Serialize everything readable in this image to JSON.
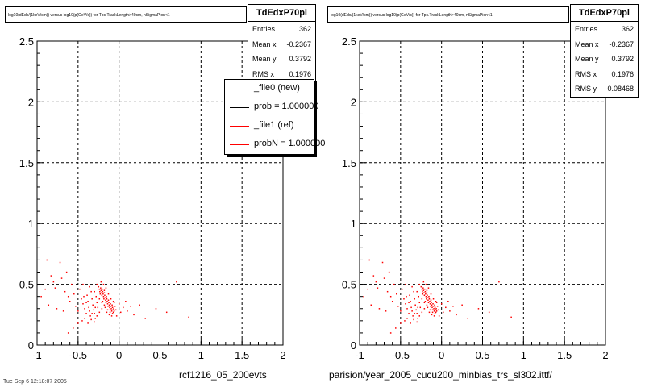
{
  "chart_data": [
    {
      "type": "scatter",
      "title": "log10(dEdx/(1keV/cm)) versus log10(p(GeV/c)) for Tpc.TrackLength>40cm, nSigmaPion<1",
      "xlabel": "rcf1216_05_200evts",
      "ylabel": "",
      "xlim": [
        -1,
        2
      ],
      "ylim": [
        0,
        2.5
      ],
      "xticks": [
        "-1",
        "-0.5",
        "0",
        "0.5",
        "1",
        "1.5",
        "2"
      ],
      "yticks": [
        "0",
        "0.5",
        "1",
        "1.5",
        "2",
        "2.5"
      ],
      "grid": true,
      "marker_color": "#ff0000",
      "stats": {
        "name": "TdEdxP70pi",
        "rows": [
          {
            "label": "Entries",
            "value": "362"
          },
          {
            "label": "Mean x",
            "value": "-0.2367"
          },
          {
            "label": "Mean y",
            "value": "0.3792"
          },
          {
            "label": "RMS x",
            "value": "0.1976"
          }
        ]
      },
      "legend": {
        "placement": "top-right",
        "entries": [
          {
            "label": "_file0 (new)",
            "color": "#000000"
          },
          {
            "label": "prob = 1.000000",
            "color": "#000000"
          },
          {
            "label": "_file1 (ref)",
            "color": "#ff0000"
          },
          {
            "label": "probN = 1.000000",
            "color": "#ff0000"
          }
        ]
      },
      "points": [
        [
          -0.88,
          0.7
        ],
        [
          -0.83,
          0.57
        ],
        [
          -0.8,
          0.52
        ],
        [
          -0.78,
          0.47
        ],
        [
          -0.72,
          0.68
        ],
        [
          -0.7,
          0.55
        ],
        [
          -0.66,
          0.44
        ],
        [
          -0.62,
          0.4
        ],
        [
          -0.6,
          0.36
        ],
        [
          -0.55,
          0.42
        ],
        [
          -0.53,
          0.32
        ],
        [
          -0.5,
          0.28
        ],
        [
          -0.48,
          0.46
        ],
        [
          -0.46,
          0.38
        ],
        [
          -0.44,
          0.34
        ],
        [
          -0.42,
          0.3
        ],
        [
          -0.4,
          0.26
        ],
        [
          -0.39,
          0.41
        ],
        [
          -0.38,
          0.36
        ],
        [
          -0.37,
          0.31
        ],
        [
          -0.36,
          0.28
        ],
        [
          -0.35,
          0.24
        ],
        [
          -0.34,
          0.44
        ],
        [
          -0.33,
          0.38
        ],
        [
          -0.32,
          0.33
        ],
        [
          -0.31,
          0.29
        ],
        [
          -0.3,
          0.26
        ],
        [
          -0.29,
          0.22
        ],
        [
          -0.28,
          0.4
        ],
        [
          -0.27,
          0.35
        ],
        [
          -0.26,
          0.31
        ],
        [
          -0.25,
          0.48
        ],
        [
          -0.24,
          0.46
        ],
        [
          -0.235,
          0.44
        ],
        [
          -0.23,
          0.42
        ],
        [
          -0.225,
          0.47
        ],
        [
          -0.22,
          0.45
        ],
        [
          -0.215,
          0.43
        ],
        [
          -0.21,
          0.41
        ],
        [
          -0.205,
          0.46
        ],
        [
          -0.2,
          0.44
        ],
        [
          -0.195,
          0.42
        ],
        [
          -0.19,
          0.4
        ],
        [
          -0.185,
          0.38
        ],
        [
          -0.18,
          0.43
        ],
        [
          -0.175,
          0.41
        ],
        [
          -0.17,
          0.39
        ],
        [
          -0.165,
          0.37
        ],
        [
          -0.16,
          0.35
        ],
        [
          -0.155,
          0.4
        ],
        [
          -0.15,
          0.38
        ],
        [
          -0.145,
          0.36
        ],
        [
          -0.14,
          0.34
        ],
        [
          -0.135,
          0.32
        ],
        [
          -0.13,
          0.37
        ],
        [
          -0.125,
          0.35
        ],
        [
          -0.12,
          0.33
        ],
        [
          -0.115,
          0.31
        ],
        [
          -0.11,
          0.29
        ],
        [
          -0.105,
          0.34
        ],
        [
          -0.1,
          0.32
        ],
        [
          -0.095,
          0.3
        ],
        [
          -0.09,
          0.28
        ],
        [
          -0.085,
          0.33
        ],
        [
          -0.08,
          0.31
        ],
        [
          -0.075,
          0.29
        ],
        [
          -0.07,
          0.27
        ],
        [
          -0.065,
          0.3
        ],
        [
          -0.06,
          0.28
        ],
        [
          -0.05,
          0.32
        ],
        [
          -0.45,
          0.2
        ],
        [
          -0.42,
          0.22
        ],
        [
          -0.38,
          0.18
        ],
        [
          -0.34,
          0.21
        ],
        [
          -0.3,
          0.19
        ],
        [
          -0.27,
          0.24
        ],
        [
          -0.24,
          0.27
        ],
        [
          -0.21,
          0.3
        ],
        [
          -0.18,
          0.33
        ],
        [
          -0.15,
          0.27
        ],
        [
          -0.12,
          0.25
        ],
        [
          -0.08,
          0.26
        ],
        [
          -0.04,
          0.29
        ],
        [
          0.0,
          0.34
        ],
        [
          0.05,
          0.31
        ],
        [
          0.1,
          0.28
        ],
        [
          0.18,
          0.25
        ],
        [
          0.25,
          0.33
        ],
        [
          0.32,
          0.22
        ],
        [
          0.45,
          0.3
        ],
        [
          0.58,
          0.27
        ],
        [
          0.7,
          0.52
        ],
        [
          0.85,
          0.23
        ],
        [
          -0.62,
          0.1
        ],
        [
          -0.56,
          0.14
        ],
        [
          -0.5,
          0.18
        ],
        [
          -0.86,
          0.33
        ],
        [
          -0.76,
          0.3
        ],
        [
          -0.68,
          0.28
        ],
        [
          -0.95,
          0.4
        ],
        [
          -0.9,
          0.46
        ],
        [
          -0.64,
          0.6
        ],
        [
          -0.58,
          0.5
        ],
        [
          -0.44,
          0.5
        ],
        [
          -0.36,
          0.48
        ],
        [
          -0.3,
          0.44
        ],
        [
          -0.27,
          0.5
        ],
        [
          -0.22,
          0.52
        ],
        [
          -0.19,
          0.5
        ],
        [
          -0.16,
          0.47
        ],
        [
          -0.2,
          0.36
        ],
        [
          -0.17,
          0.31
        ],
        [
          -0.14,
          0.29
        ],
        [
          -0.11,
          0.27
        ],
        [
          -0.09,
          0.24
        ],
        [
          -0.06,
          0.35
        ],
        [
          -0.03,
          0.24
        ],
        [
          0.02,
          0.27
        ],
        [
          0.08,
          0.36
        ],
        [
          0.14,
          0.32
        ],
        [
          -0.24,
          0.38
        ],
        [
          -0.21,
          0.35
        ],
        [
          -0.18,
          0.45
        ],
        [
          -0.13,
          0.42
        ],
        [
          -0.1,
          0.38
        ],
        [
          -0.07,
          0.36
        ],
        [
          -0.4,
          0.35
        ],
        [
          -0.43,
          0.4
        ],
        [
          -0.33,
          0.26
        ],
        [
          -0.29,
          0.31
        ]
      ]
    },
    {
      "type": "scatter",
      "title": "log10(dEdx/(1keV/cm)) versus log10(p(GeV/c)) for Tpc.TrackLength>40cm, nSigmaPion<1",
      "xlabel": "parision/year_2005_cucu200_minbias_trs_sl302.ittf/",
      "ylabel": "",
      "xlim": [
        -1,
        2
      ],
      "ylim": [
        0,
        2.5
      ],
      "xticks": [
        "-1",
        "-0.5",
        "0",
        "0.5",
        "1",
        "1.5",
        "2"
      ],
      "yticks": [
        "0",
        "0.5",
        "1",
        "1.5",
        "2",
        "2.5"
      ],
      "grid": true,
      "marker_color": "#ff0000",
      "stats": {
        "name": "TdEdxP70pi",
        "rows": [
          {
            "label": "Entries",
            "value": "362"
          },
          {
            "label": "Mean x",
            "value": "-0.2367"
          },
          {
            "label": "Mean y",
            "value": "0.3792"
          },
          {
            "label": "RMS x",
            "value": "0.1976"
          },
          {
            "label": "RMS y",
            "value": "0.08468"
          }
        ]
      }
    }
  ],
  "footer": {
    "corner_text": "Tue Sep  6 12:18:07 2005"
  }
}
